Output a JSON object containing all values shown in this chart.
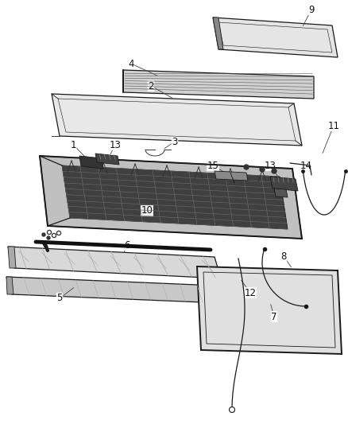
{
  "background_color": "#ffffff",
  "line_color": "#1a1a1a",
  "label_color": "#111111",
  "fig_width": 4.38,
  "fig_height": 5.33,
  "dpi": 100
}
